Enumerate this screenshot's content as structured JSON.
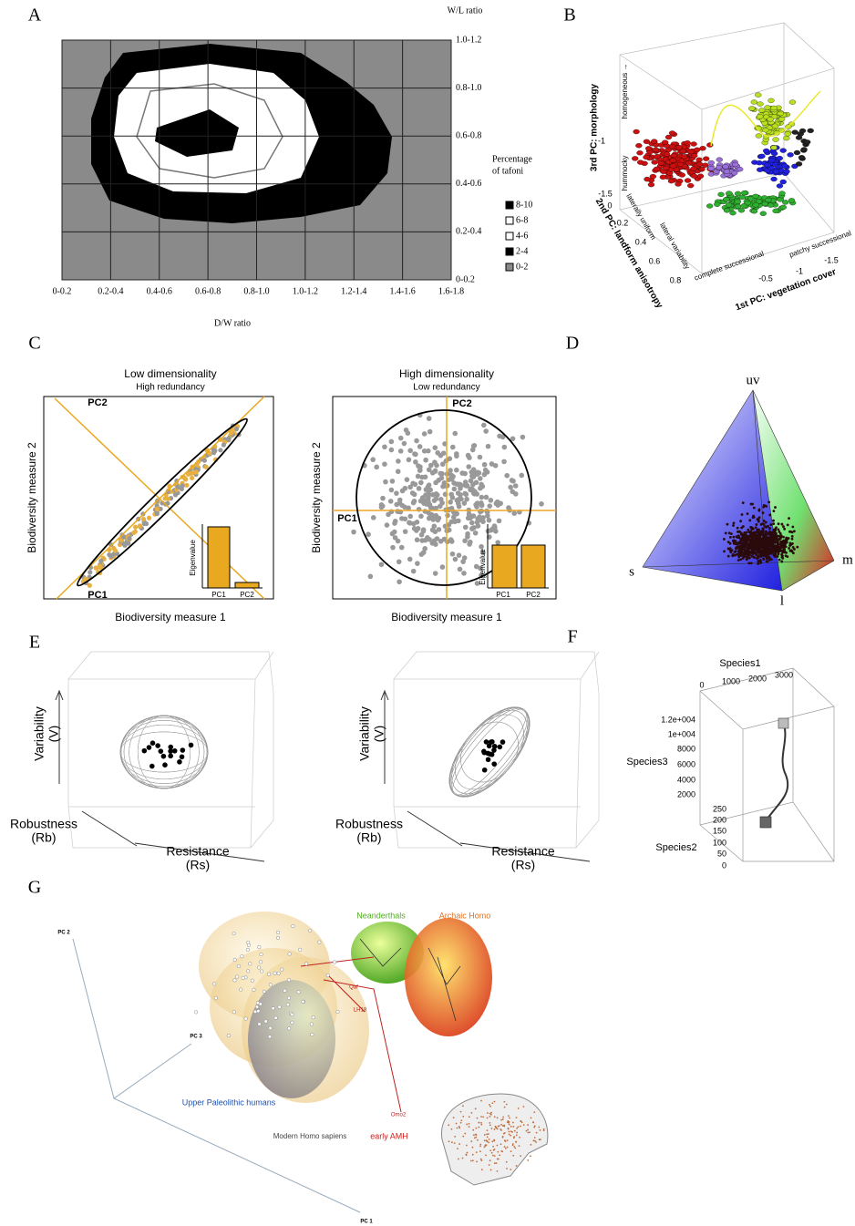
{
  "panel_labels": [
    "A",
    "B",
    "C",
    "D",
    "E",
    "F",
    "G"
  ],
  "panel_a": {
    "y_axis_title": "W/L ratio",
    "x_axis_title": "D/W ratio",
    "x_ticks": [
      "0-0.2",
      "0.2-0.4",
      "0.4-0.6",
      "0.6-0.8",
      "0.8-1.0",
      "1.0-1.2",
      "1.2-1.4",
      "1.4-1.6",
      "1.6-1.8"
    ],
    "y_ticks": [
      "1.0-1.2",
      "0.8-1.0",
      "0.6-0.8",
      "0.4-0.6",
      "0.2-0.4",
      "0-0.2"
    ],
    "legend_title": [
      "Percentage",
      "of tafoni"
    ],
    "legend": [
      "8-10",
      "6-8",
      "4-6",
      "2-4",
      "0-2"
    ]
  },
  "panel_b": {
    "z_title": "3rd PC: morphology",
    "z_top": "homogeneous →",
    "z_bottom": "hummocky",
    "z_ticks": [
      "-1",
      "-1.5"
    ],
    "y_title": "2nd PC: landform anisotropy",
    "y_top": "laterally uniform",
    "y_bottom": "lateral variability",
    "y_ticks": [
      "0",
      "0.2",
      "0.4",
      "0.6",
      "0.8"
    ],
    "x_title": "1st PC: vegetation cover",
    "x_left": "complete successional",
    "x_right": "patchy successional",
    "x_ticks": [
      "-0.5",
      "-1",
      "-1.5"
    ]
  },
  "panel_c": {
    "plots": [
      {
        "title": "Low dimensionality",
        "subtitle": "High redundancy",
        "pc_labels": [
          "PC2",
          "PC1"
        ],
        "x_axis": "Biodiversity measure 1",
        "y_axis": "Biodiversity measure 2",
        "inset_axis": "Eigenvalue",
        "inset_bars": [
          "PC1",
          "PC2"
        ]
      },
      {
        "title": "High dimensionality",
        "subtitle": "Low redundancy",
        "pc_labels": [
          "PC2",
          "PC1"
        ],
        "x_axis": "Biodiversity measure 1",
        "y_axis": "Biodiversity measure 2",
        "inset_axis": "Eigenvalue",
        "inset_bars": [
          "PC1",
          "PC2"
        ]
      }
    ]
  },
  "panel_d": {
    "vertices": [
      "uv",
      "s",
      "m",
      "l"
    ]
  },
  "panel_e": {
    "plots": [
      {
        "y_axis": [
          "Variability",
          "(V)"
        ],
        "z_axis": [
          "Robustness",
          "(Rb)"
        ],
        "x_axis": [
          "Resistance",
          "(Rs)"
        ]
      },
      {
        "y_axis": [
          "Variability",
          "(V)"
        ],
        "z_axis": [
          "Robustness",
          "(Rb)"
        ],
        "x_axis": [
          "Resistance",
          "(Rs)"
        ]
      }
    ]
  },
  "panel_f": {
    "x_title": "Species1",
    "x_ticks": [
      "0",
      "1000",
      "2000",
      "3000"
    ],
    "z_title": "Species3",
    "z_ticks": [
      "1.2e+004",
      "1e+004",
      "8000",
      "6000",
      "4000",
      "2000"
    ],
    "y_title": "Species2",
    "y_ticks": [
      "250",
      "200",
      "150",
      "100",
      "50",
      "0"
    ]
  },
  "panel_g": {
    "axes": [
      "PC 2",
      "PC 3",
      "PC 1"
    ],
    "groups": [
      "Neanderthals",
      "Archaic Homo",
      "Upper Paleolithic humans",
      "Modern Homo sapiens",
      "early AMH"
    ],
    "specimens": [
      "Qaf",
      "LH18",
      "Omo2"
    ]
  }
}
